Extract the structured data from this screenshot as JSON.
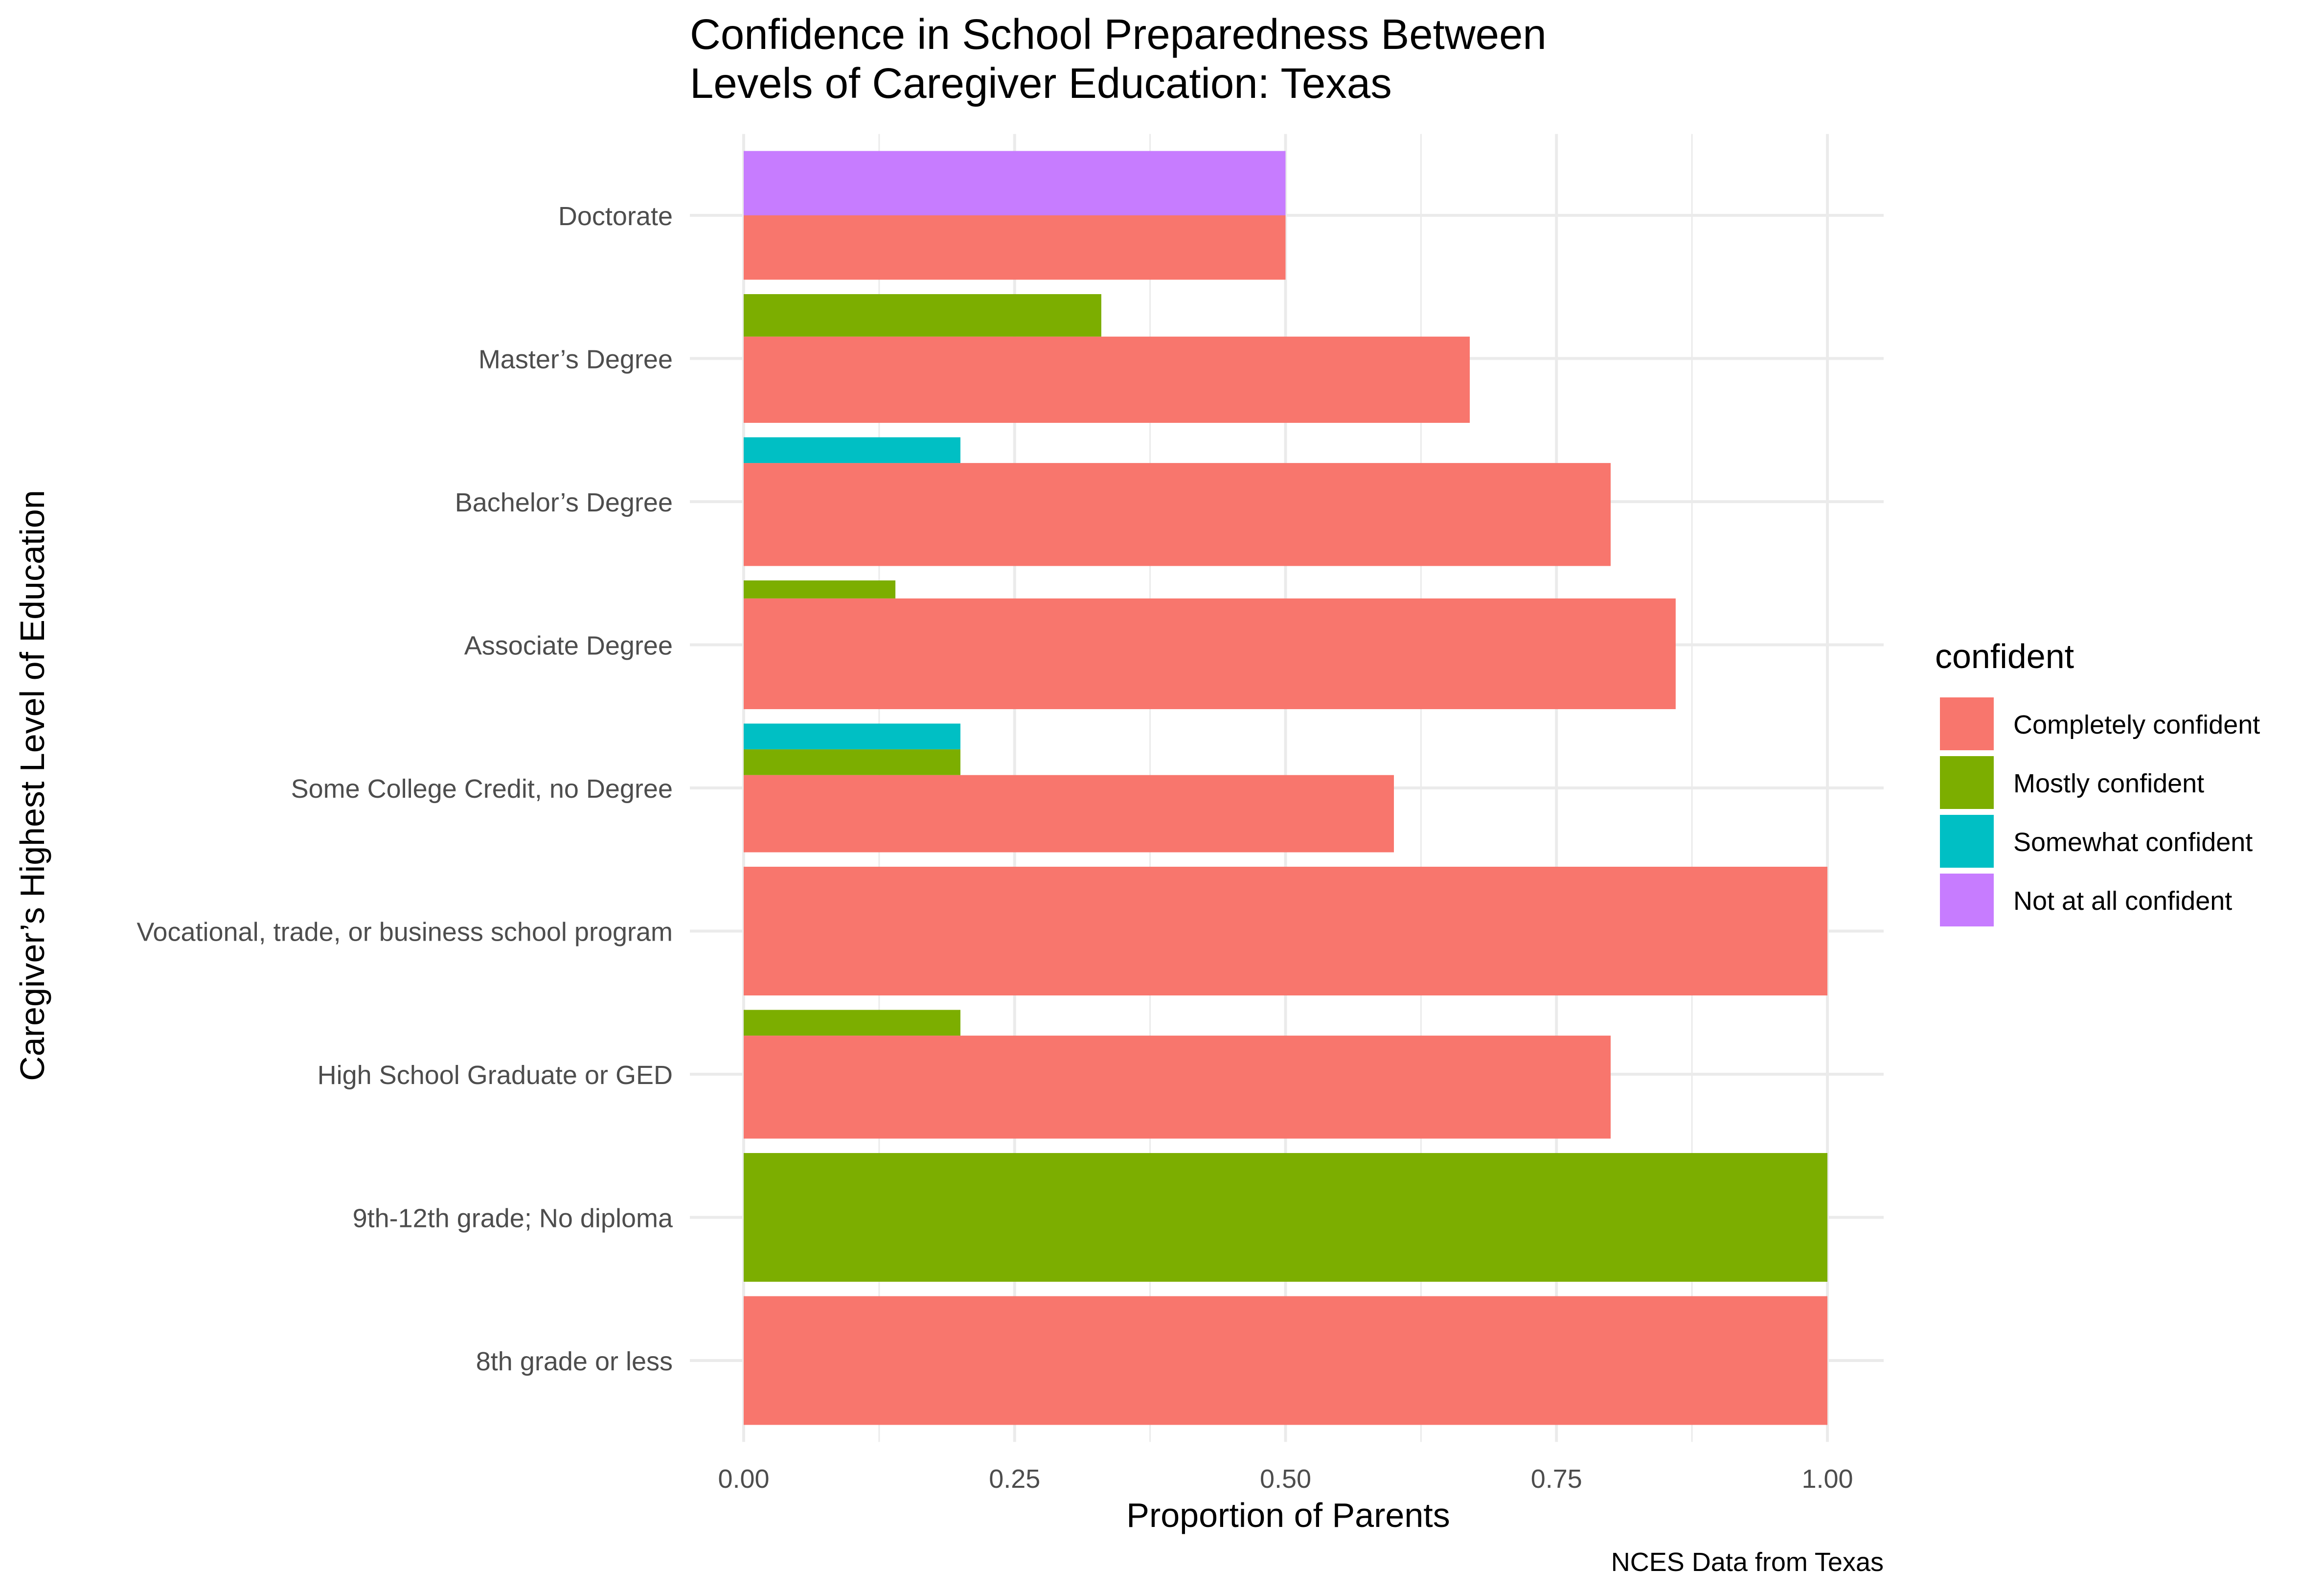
{
  "chart_data": {
    "type": "bar",
    "orientation": "horizontal",
    "stacked": true,
    "title": "Confidence in School Preparedness Between\nLevels of Caregiver Education: Texas",
    "xlabel": "Proportion of Parents",
    "ylabel": "Caregiver’s Highest Level of Education",
    "caption": "NCES Data from Texas",
    "xlim": [
      0,
      1
    ],
    "xticks": [
      0,
      0.25,
      0.5,
      0.75,
      1
    ],
    "xtick_labels": [
      "0.00",
      "0.25",
      "0.50",
      "0.75",
      "1.00"
    ],
    "grid": true,
    "legend_title": "confident",
    "legend_position": "right",
    "categories": [
      "Doctorate",
      "Master’s Degree",
      "Bachelor’s Degree",
      "Associate Degree",
      "Some College Credit, no Degree",
      "Vocational, trade, or business school program",
      "High School Graduate or GED",
      "9th-12th grade; No diploma",
      "8th grade or less"
    ],
    "series": [
      {
        "name": "Completely confident",
        "color": "#F8766D",
        "values": [
          0.5,
          0.67,
          0.8,
          0.86,
          0.6,
          1.0,
          0.8,
          0.0,
          1.0
        ]
      },
      {
        "name": "Mostly confident",
        "color": "#7CAE00",
        "values": [
          0.0,
          0.33,
          0.0,
          0.14,
          0.2,
          0.0,
          0.2,
          1.0,
          0.0
        ]
      },
      {
        "name": "Somewhat confident",
        "color": "#00BFC4",
        "values": [
          0.0,
          0.0,
          0.2,
          0.0,
          0.2,
          0.0,
          0.0,
          0.0,
          0.0
        ]
      },
      {
        "name": "Not at all confident",
        "color": "#C77CFF",
        "values": [
          0.5,
          0.0,
          0.0,
          0.0,
          0.0,
          0.0,
          0.0,
          0.0,
          0.0
        ]
      }
    ]
  }
}
